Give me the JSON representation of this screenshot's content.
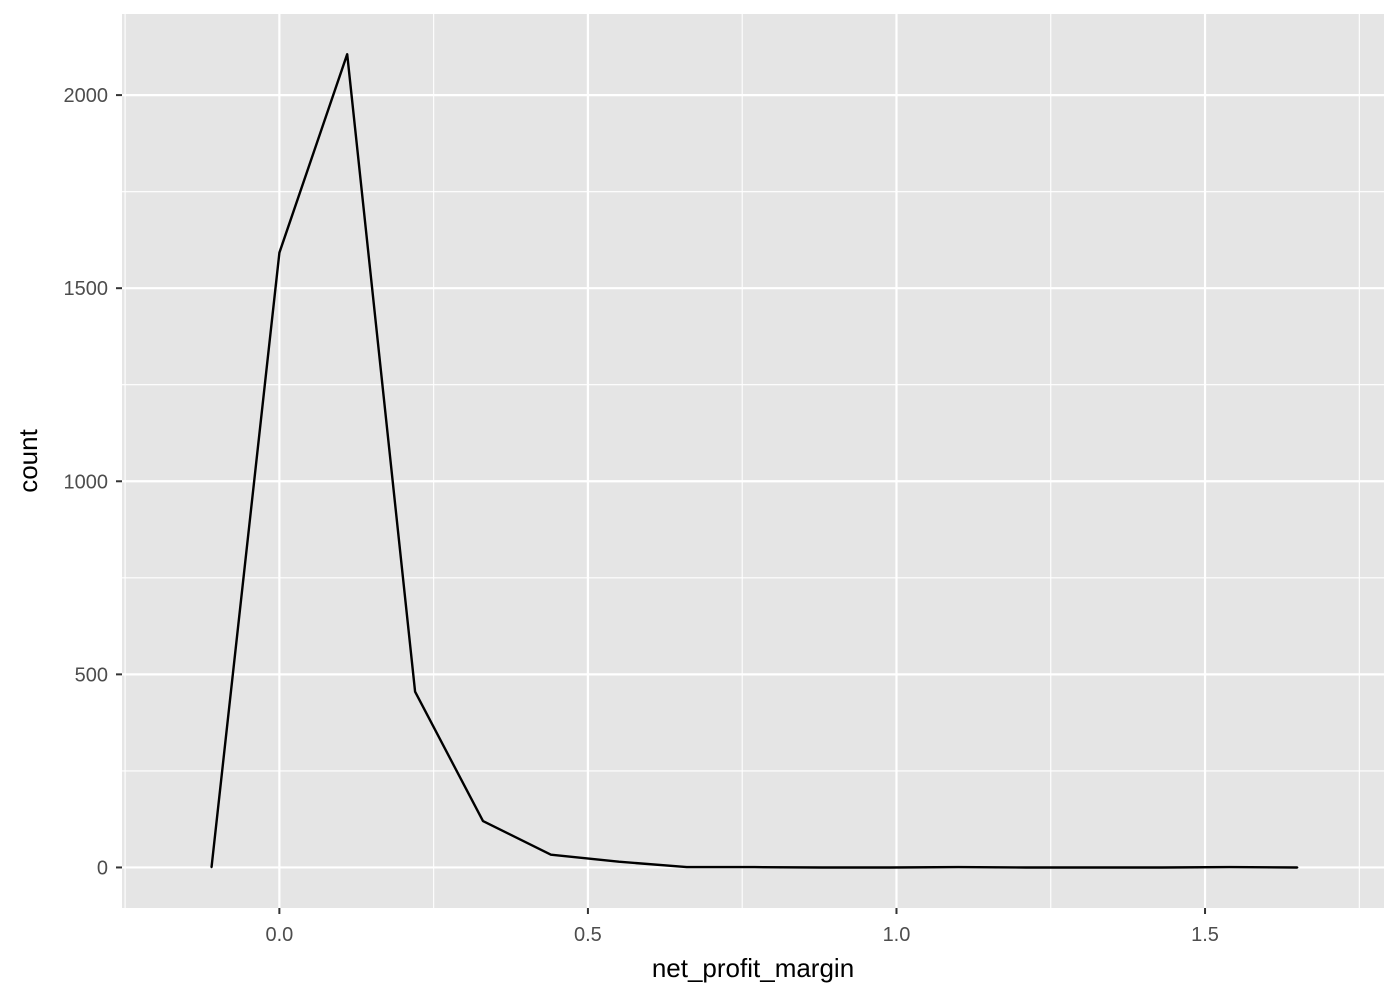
{
  "chart_data": {
    "type": "line",
    "xlabel": "net_profit_margin",
    "ylabel": "count",
    "xlim": [
      -0.255,
      1.79
    ],
    "ylim": [
      -105,
      2210
    ],
    "x_ticks": [
      0.0,
      0.5,
      1.0,
      1.5
    ],
    "x_tick_labels": [
      "0.0",
      "0.5",
      "1.0",
      "1.5"
    ],
    "y_ticks": [
      0,
      500,
      1000,
      1500,
      2000
    ],
    "y_tick_labels": [
      "0",
      "500",
      "1000",
      "1500",
      "2000"
    ],
    "grid": true,
    "legend": "none",
    "colors": {
      "panel_background": "#e5e5e5",
      "grid_line": "#ffffff",
      "line": "#000000"
    },
    "series": [
      {
        "x": [
          -0.11,
          0.0,
          0.11,
          0.22,
          0.33,
          0.44,
          0.55,
          0.66,
          0.77,
          0.88,
          0.99,
          1.1,
          1.21,
          1.32,
          1.43,
          1.54,
          1.65
        ],
        "values": [
          0,
          1592,
          2106,
          455,
          120,
          33,
          15,
          1,
          1,
          0,
          0,
          1,
          0,
          0,
          0,
          1,
          0
        ]
      }
    ]
  }
}
